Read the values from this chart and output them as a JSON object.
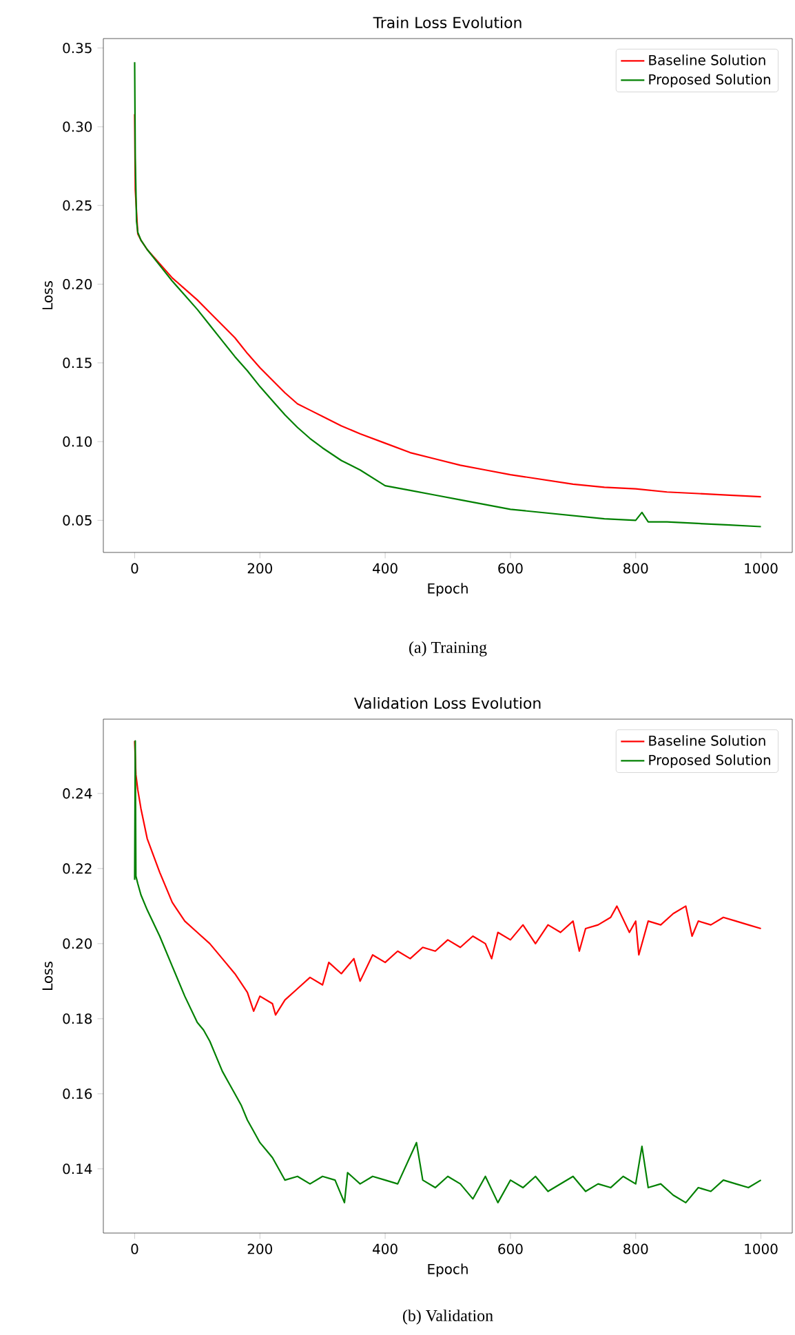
{
  "chart_data": [
    {
      "type": "line",
      "title": "Train Loss Evolution",
      "xlabel": "Epoch",
      "ylabel": "Loss",
      "annotations": [
        "(a) Training"
      ],
      "legend": "top right",
      "xlim": [
        -50,
        1050
      ],
      "ylim": [
        0.0296,
        0.356
      ],
      "xticks": [
        0,
        200,
        400,
        600,
        800,
        1000
      ],
      "yticks": [
        0.05,
        {
          "value": 0.1,
          "label": "0.10"
        },
        0.15,
        {
          "value": 0.2,
          "label": "0.20"
        },
        0.25,
        {
          "value": 0.3,
          "label": "0.30"
        },
        0.35
      ],
      "series": [
        {
          "name": "Baseline Solution",
          "color": "#ff0000",
          "x": [
            0,
            1,
            3,
            5,
            10,
            20,
            40,
            60,
            80,
            100,
            120,
            140,
            160,
            180,
            200,
            220,
            240,
            260,
            280,
            300,
            330,
            360,
            400,
            440,
            480,
            520,
            560,
            600,
            650,
            700,
            750,
            800,
            850,
            900,
            950,
            1000
          ],
          "values": [
            0.308,
            0.26,
            null,
            0.232,
            0.228,
            0.222,
            0.213,
            0.204,
            0.197,
            0.19,
            0.182,
            0.174,
            0.166,
            0.156,
            0.147,
            0.139,
            0.131,
            0.124,
            0.12,
            0.116,
            0.11,
            0.105,
            0.099,
            0.093,
            0.089,
            0.085,
            0.082,
            0.079,
            0.076,
            0.073,
            0.071,
            0.07,
            0.068,
            0.067,
            0.066,
            0.065
          ]
        },
        {
          "name": "Proposed Solution",
          "color": "#008000",
          "x": [
            0,
            1,
            3,
            5,
            10,
            20,
            40,
            60,
            80,
            100,
            120,
            140,
            160,
            180,
            200,
            220,
            240,
            260,
            280,
            300,
            330,
            360,
            400,
            440,
            480,
            520,
            560,
            600,
            650,
            700,
            750,
            800,
            810,
            820,
            850,
            900,
            950,
            1000
          ],
          "values": [
            0.341,
            0.28,
            0.24,
            0.233,
            0.228,
            0.222,
            0.212,
            0.202,
            0.193,
            0.184,
            0.174,
            0.164,
            0.154,
            0.145,
            0.135,
            0.126,
            0.117,
            0.109,
            0.102,
            0.096,
            0.088,
            0.082,
            0.072,
            0.069,
            0.066,
            0.063,
            0.06,
            0.057,
            0.055,
            0.053,
            0.051,
            0.05,
            0.055,
            0.049,
            0.049,
            0.048,
            0.047,
            0.046
          ]
        }
      ]
    },
    {
      "type": "line",
      "title": "Validation Loss Evolution",
      "xlabel": "Epoch",
      "ylabel": "Loss",
      "annotations": [
        "(b) Validation"
      ],
      "legend": "top right",
      "xlim": [
        -50,
        1050
      ],
      "ylim": [
        0.1229,
        0.2598
      ],
      "xticks": [
        0,
        200,
        400,
        600,
        800,
        1000
      ],
      "yticks": [
        0.14,
        0.16,
        0.18,
        {
          "value": 0.2,
          "label": "0.20"
        },
        0.22,
        0.24
      ],
      "series": [
        {
          "name": "Baseline Solution",
          "color": "#ff0000",
          "x": [
            0,
            2,
            5,
            10,
            20,
            40,
            60,
            80,
            100,
            120,
            140,
            160,
            180,
            190,
            200,
            220,
            225,
            240,
            260,
            280,
            300,
            310,
            330,
            350,
            360,
            380,
            400,
            420,
            440,
            460,
            480,
            500,
            520,
            540,
            560,
            570,
            580,
            600,
            620,
            640,
            660,
            680,
            700,
            710,
            720,
            740,
            760,
            770,
            790,
            800,
            805,
            820,
            840,
            860,
            880,
            890,
            900,
            920,
            940,
            960,
            980,
            1000
          ],
          "values": [
            0.254,
            0.245,
            0.241,
            0.236,
            0.228,
            0.219,
            0.211,
            0.206,
            0.203,
            0.2,
            0.196,
            0.192,
            0.187,
            0.182,
            0.186,
            0.184,
            0.181,
            0.185,
            0.188,
            0.191,
            0.189,
            0.195,
            0.192,
            0.196,
            0.19,
            0.197,
            0.195,
            0.198,
            0.196,
            0.199,
            0.198,
            0.201,
            0.199,
            0.202,
            0.2,
            0.196,
            0.203,
            0.201,
            0.205,
            0.2,
            0.205,
            0.203,
            0.206,
            0.198,
            0.204,
            0.205,
            0.207,
            0.21,
            0.203,
            0.206,
            0.197,
            0.206,
            0.205,
            0.208,
            0.21,
            0.202,
            0.206,
            0.205,
            0.207,
            0.206,
            0.205,
            0.204
          ]
        },
        {
          "name": "Proposed Solution",
          "color": "#008000",
          "x": [
            0,
            1,
            2,
            5,
            10,
            20,
            40,
            60,
            80,
            100,
            110,
            120,
            130,
            140,
            150,
            160,
            170,
            180,
            190,
            200,
            210,
            220,
            230,
            240,
            260,
            280,
            300,
            320,
            335,
            340,
            360,
            380,
            400,
            420,
            450,
            460,
            480,
            500,
            520,
            540,
            560,
            580,
            600,
            620,
            640,
            660,
            680,
            700,
            720,
            740,
            760,
            780,
            800,
            810,
            820,
            840,
            860,
            880,
            900,
            920,
            940,
            960,
            980,
            1000
          ],
          "values": [
            0.217,
            0.254,
            0.218,
            0.216,
            0.213,
            0.209,
            0.202,
            0.194,
            0.186,
            0.179,
            0.177,
            0.174,
            0.17,
            0.166,
            0.163,
            0.16,
            0.157,
            0.153,
            0.15,
            0.147,
            0.145,
            0.143,
            0.14,
            0.137,
            0.138,
            0.136,
            0.138,
            0.137,
            0.131,
            0.139,
            0.136,
            0.138,
            0.137,
            0.136,
            0.147,
            0.137,
            0.135,
            0.138,
            0.136,
            0.132,
            0.138,
            0.131,
            0.137,
            0.135,
            0.138,
            0.134,
            0.136,
            0.138,
            0.134,
            0.136,
            0.135,
            0.138,
            0.136,
            0.146,
            0.135,
            0.136,
            0.133,
            0.131,
            0.135,
            0.134,
            0.137,
            0.136,
            0.135,
            0.137
          ]
        }
      ]
    }
  ]
}
